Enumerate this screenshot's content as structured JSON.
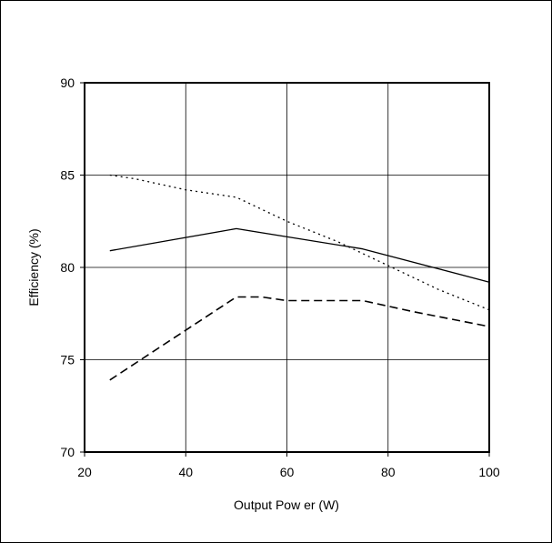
{
  "chart_data": {
    "type": "line",
    "title": "",
    "xlabel": "Output Pow er (W)",
    "ylabel": "Efficiency (%)",
    "xlim": [
      20,
      100
    ],
    "ylim": [
      70,
      90
    ],
    "x_ticks": [
      20,
      40,
      60,
      80,
      100
    ],
    "y_ticks": [
      70,
      75,
      80,
      85,
      90
    ],
    "x_tick_labels": [
      "20",
      "40",
      "60",
      "80",
      "100"
    ],
    "y_tick_labels": [
      "70",
      "75",
      "80",
      "85",
      "90"
    ],
    "grid": true,
    "legend": "none",
    "series": [
      {
        "style": "solid",
        "color": "#000000",
        "points": [
          [
            25,
            80.9
          ],
          [
            50,
            82.1
          ],
          [
            75,
            81.0
          ],
          [
            100,
            79.2
          ]
        ]
      },
      {
        "style": "dotted",
        "color": "#000000",
        "points": [
          [
            25,
            85.0
          ],
          [
            30,
            84.8
          ],
          [
            40,
            84.2
          ],
          [
            50,
            83.8
          ],
          [
            60,
            82.5
          ],
          [
            70,
            81.4
          ],
          [
            80,
            80.1
          ],
          [
            90,
            78.8
          ],
          [
            100,
            77.7
          ]
        ]
      },
      {
        "style": "dashed",
        "color": "#000000",
        "points": [
          [
            25,
            73.9
          ],
          [
            50,
            78.4
          ],
          [
            55,
            78.4
          ],
          [
            60,
            78.2
          ],
          [
            75,
            78.2
          ],
          [
            85,
            77.6
          ],
          [
            100,
            76.8
          ]
        ]
      }
    ]
  }
}
